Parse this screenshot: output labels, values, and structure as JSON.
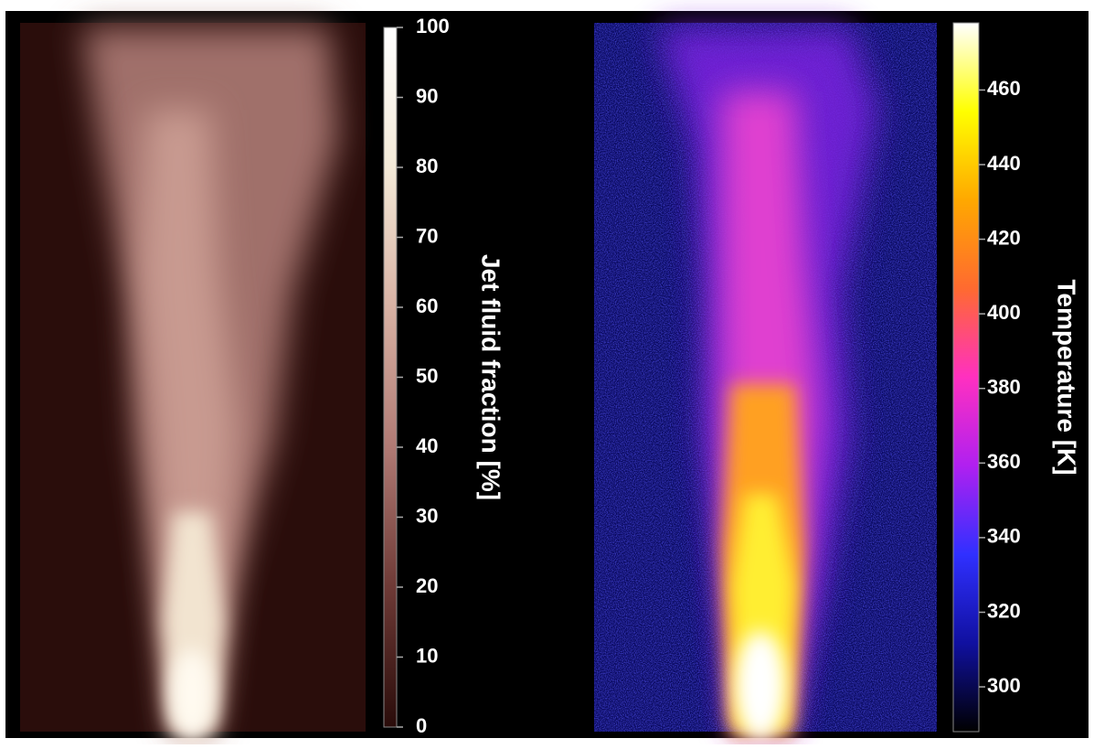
{
  "chart_data": [
    {
      "type": "heatmap",
      "colorbar_label": "Jet fluid fraction [%]",
      "clim": [
        0,
        100
      ],
      "cticks": [
        0,
        10,
        20,
        30,
        40,
        50,
        60,
        70,
        80,
        90,
        100
      ],
      "colormap": [
        "#2a0c0a",
        "#6e3a36",
        "#b07a74",
        "#d8b2a4",
        "#f4ead8",
        "#ffffff"
      ]
    },
    {
      "type": "heatmap",
      "colorbar_label": "Temperature [K]",
      "clim": [
        288,
        478
      ],
      "cticks": [
        300,
        320,
        340,
        360,
        380,
        400,
        420,
        440,
        460
      ],
      "colormap": [
        "#000000",
        "#1010a0",
        "#3030ff",
        "#b020f0",
        "#ff30c0",
        "#ff6a30",
        "#ffa800",
        "#ffff00",
        "#ffffff"
      ]
    }
  ]
}
